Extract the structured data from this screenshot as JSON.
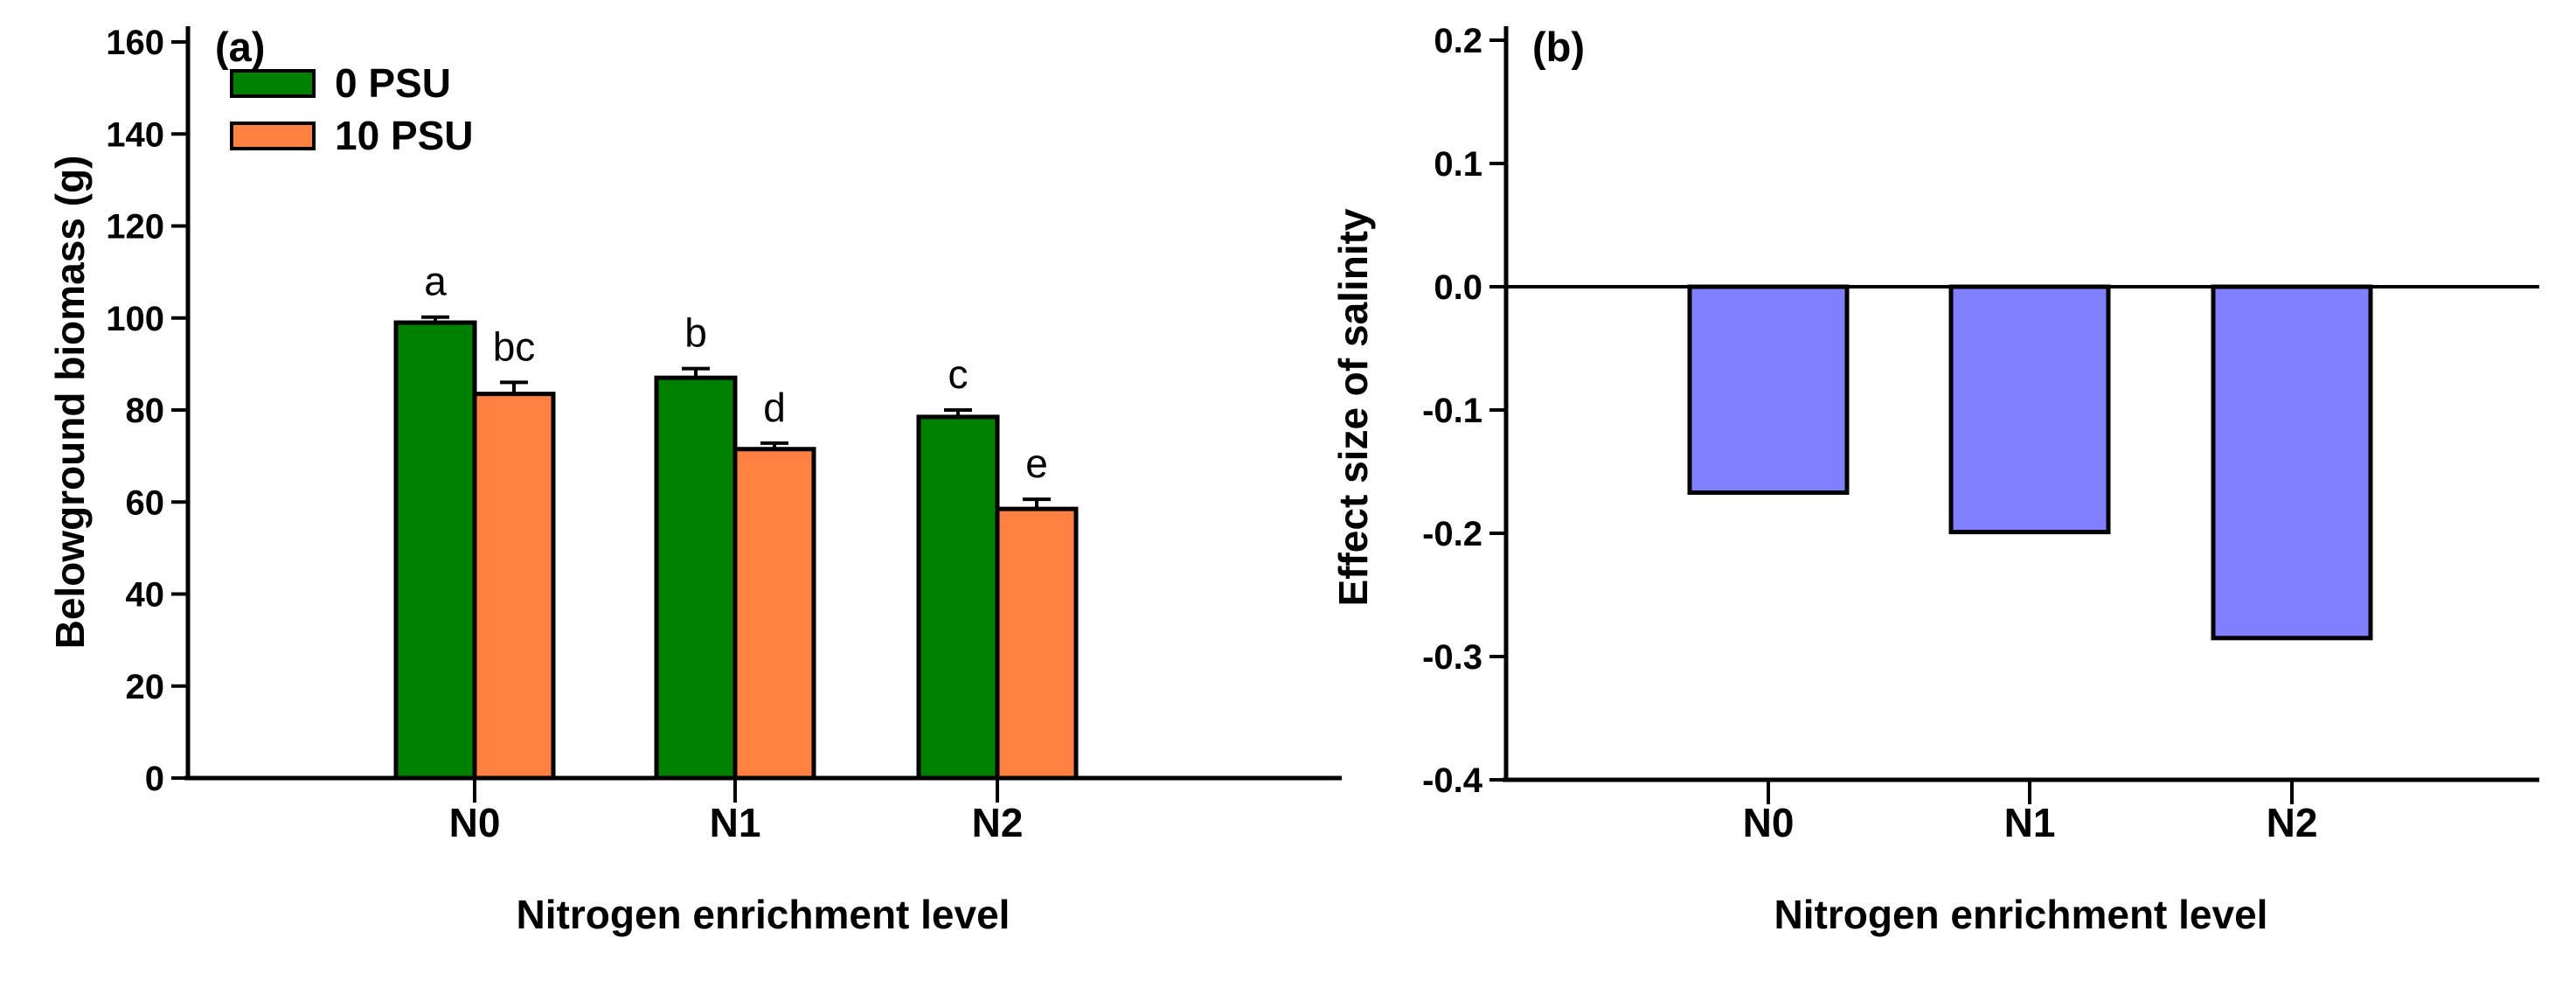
{
  "figure": {
    "background": "#FFFFFF",
    "text_color": "#000000"
  },
  "chart_data": [
    {
      "type": "bar",
      "panel_label": "(a)",
      "title": "",
      "xlabel": "Nitrogen enrichment level",
      "ylabel": "Belowground biomass (g)",
      "categories": [
        "N0",
        "N1",
        "N2"
      ],
      "ylim": [
        0,
        160
      ],
      "ytick_step": 20,
      "ytick_labels": [
        "0",
        "20",
        "40",
        "60",
        "80",
        "100",
        "120",
        "140",
        "160"
      ],
      "grid": false,
      "legend_position": "upper-left",
      "series": [
        {
          "name": "0 PSU",
          "color": "#008000",
          "values": [
            99,
            87,
            78.5
          ],
          "errors_plus": [
            1.2,
            2.0,
            1.5
          ],
          "sig_letters": [
            "a",
            "b",
            "c"
          ]
        },
        {
          "name": "10 PSU",
          "color": "#FF8040",
          "values": [
            83.5,
            71.5,
            58.5
          ],
          "errors_plus": [
            2.5,
            1.3,
            2.1
          ],
          "sig_letters": [
            "bc",
            "d",
            "e"
          ]
        }
      ]
    },
    {
      "type": "bar",
      "panel_label": "(b)",
      "title": "",
      "xlabel": "Nitrogen enrichment level",
      "ylabel": "Effect size of salinity",
      "categories": [
        "N0",
        "N1",
        "N2"
      ],
      "ylim": [
        -0.4,
        0.2
      ],
      "ytick_step": 0.1,
      "ytick_labels": [
        "0.2",
        "0.1",
        "0.0",
        "-0.1",
        "-0.2",
        "-0.3",
        "-0.4"
      ],
      "zero_line": true,
      "grid": false,
      "series": [
        {
          "name": "Effect size of salinity",
          "color": "#8080FF",
          "values": [
            -0.167,
            -0.199,
            -0.285
          ]
        }
      ]
    }
  ]
}
